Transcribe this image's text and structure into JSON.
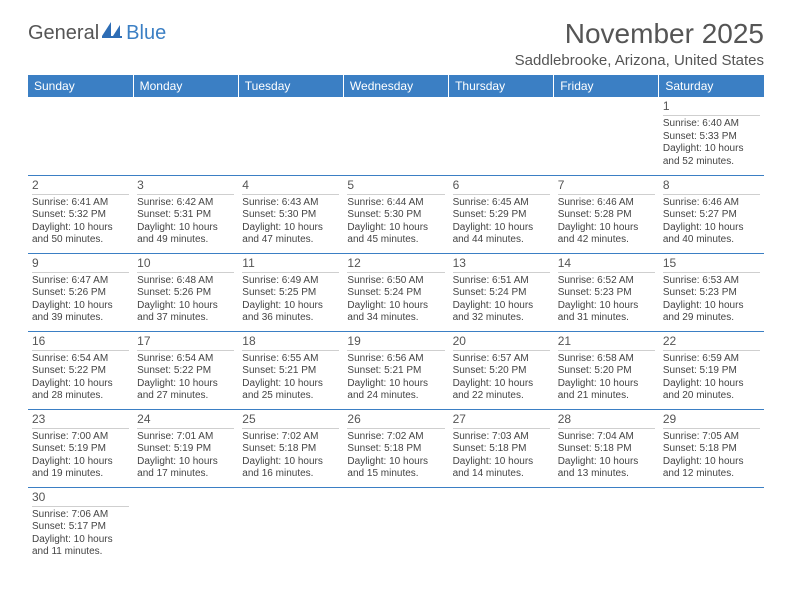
{
  "brand": {
    "name1": "General",
    "name2": "Blue"
  },
  "title": "November 2025",
  "location": "Saddlebrooke, Arizona, United States",
  "colors": {
    "header_bg": "#3b7fc4",
    "header_text": "#ffffff",
    "text": "#444444",
    "title_text": "#555555",
    "divider": "#3b7fc4",
    "cell_divider": "#cfcfcf",
    "background": "#ffffff"
  },
  "typography": {
    "title_fontsize": 28,
    "location_fontsize": 15,
    "weekday_fontsize": 12,
    "daynum_fontsize": 12,
    "body_fontsize": 10
  },
  "weekdays": [
    "Sunday",
    "Monday",
    "Tuesday",
    "Wednesday",
    "Thursday",
    "Friday",
    "Saturday"
  ],
  "calendar": {
    "type": "table",
    "first_weekday_index": 6,
    "rows": [
      [
        null,
        null,
        null,
        null,
        null,
        null,
        {
          "n": 1,
          "sunrise": "6:40 AM",
          "sunset": "5:33 PM",
          "daylight": "10 hours and 52 minutes."
        }
      ],
      [
        {
          "n": 2,
          "sunrise": "6:41 AM",
          "sunset": "5:32 PM",
          "daylight": "10 hours and 50 minutes."
        },
        {
          "n": 3,
          "sunrise": "6:42 AM",
          "sunset": "5:31 PM",
          "daylight": "10 hours and 49 minutes."
        },
        {
          "n": 4,
          "sunrise": "6:43 AM",
          "sunset": "5:30 PM",
          "daylight": "10 hours and 47 minutes."
        },
        {
          "n": 5,
          "sunrise": "6:44 AM",
          "sunset": "5:30 PM",
          "daylight": "10 hours and 45 minutes."
        },
        {
          "n": 6,
          "sunrise": "6:45 AM",
          "sunset": "5:29 PM",
          "daylight": "10 hours and 44 minutes."
        },
        {
          "n": 7,
          "sunrise": "6:46 AM",
          "sunset": "5:28 PM",
          "daylight": "10 hours and 42 minutes."
        },
        {
          "n": 8,
          "sunrise": "6:46 AM",
          "sunset": "5:27 PM",
          "daylight": "10 hours and 40 minutes."
        }
      ],
      [
        {
          "n": 9,
          "sunrise": "6:47 AM",
          "sunset": "5:26 PM",
          "daylight": "10 hours and 39 minutes."
        },
        {
          "n": 10,
          "sunrise": "6:48 AM",
          "sunset": "5:26 PM",
          "daylight": "10 hours and 37 minutes."
        },
        {
          "n": 11,
          "sunrise": "6:49 AM",
          "sunset": "5:25 PM",
          "daylight": "10 hours and 36 minutes."
        },
        {
          "n": 12,
          "sunrise": "6:50 AM",
          "sunset": "5:24 PM",
          "daylight": "10 hours and 34 minutes."
        },
        {
          "n": 13,
          "sunrise": "6:51 AM",
          "sunset": "5:24 PM",
          "daylight": "10 hours and 32 minutes."
        },
        {
          "n": 14,
          "sunrise": "6:52 AM",
          "sunset": "5:23 PM",
          "daylight": "10 hours and 31 minutes."
        },
        {
          "n": 15,
          "sunrise": "6:53 AM",
          "sunset": "5:23 PM",
          "daylight": "10 hours and 29 minutes."
        }
      ],
      [
        {
          "n": 16,
          "sunrise": "6:54 AM",
          "sunset": "5:22 PM",
          "daylight": "10 hours and 28 minutes."
        },
        {
          "n": 17,
          "sunrise": "6:54 AM",
          "sunset": "5:22 PM",
          "daylight": "10 hours and 27 minutes."
        },
        {
          "n": 18,
          "sunrise": "6:55 AM",
          "sunset": "5:21 PM",
          "daylight": "10 hours and 25 minutes."
        },
        {
          "n": 19,
          "sunrise": "6:56 AM",
          "sunset": "5:21 PM",
          "daylight": "10 hours and 24 minutes."
        },
        {
          "n": 20,
          "sunrise": "6:57 AM",
          "sunset": "5:20 PM",
          "daylight": "10 hours and 22 minutes."
        },
        {
          "n": 21,
          "sunrise": "6:58 AM",
          "sunset": "5:20 PM",
          "daylight": "10 hours and 21 minutes."
        },
        {
          "n": 22,
          "sunrise": "6:59 AM",
          "sunset": "5:19 PM",
          "daylight": "10 hours and 20 minutes."
        }
      ],
      [
        {
          "n": 23,
          "sunrise": "7:00 AM",
          "sunset": "5:19 PM",
          "daylight": "10 hours and 19 minutes."
        },
        {
          "n": 24,
          "sunrise": "7:01 AM",
          "sunset": "5:19 PM",
          "daylight": "10 hours and 17 minutes."
        },
        {
          "n": 25,
          "sunrise": "7:02 AM",
          "sunset": "5:18 PM",
          "daylight": "10 hours and 16 minutes."
        },
        {
          "n": 26,
          "sunrise": "7:02 AM",
          "sunset": "5:18 PM",
          "daylight": "10 hours and 15 minutes."
        },
        {
          "n": 27,
          "sunrise": "7:03 AM",
          "sunset": "5:18 PM",
          "daylight": "10 hours and 14 minutes."
        },
        {
          "n": 28,
          "sunrise": "7:04 AM",
          "sunset": "5:18 PM",
          "daylight": "10 hours and 13 minutes."
        },
        {
          "n": 29,
          "sunrise": "7:05 AM",
          "sunset": "5:18 PM",
          "daylight": "10 hours and 12 minutes."
        }
      ],
      [
        {
          "n": 30,
          "sunrise": "7:06 AM",
          "sunset": "5:17 PM",
          "daylight": "10 hours and 11 minutes."
        },
        null,
        null,
        null,
        null,
        null,
        null
      ]
    ]
  },
  "labels": {
    "sunrise": "Sunrise:",
    "sunset": "Sunset:",
    "daylight": "Daylight:"
  }
}
